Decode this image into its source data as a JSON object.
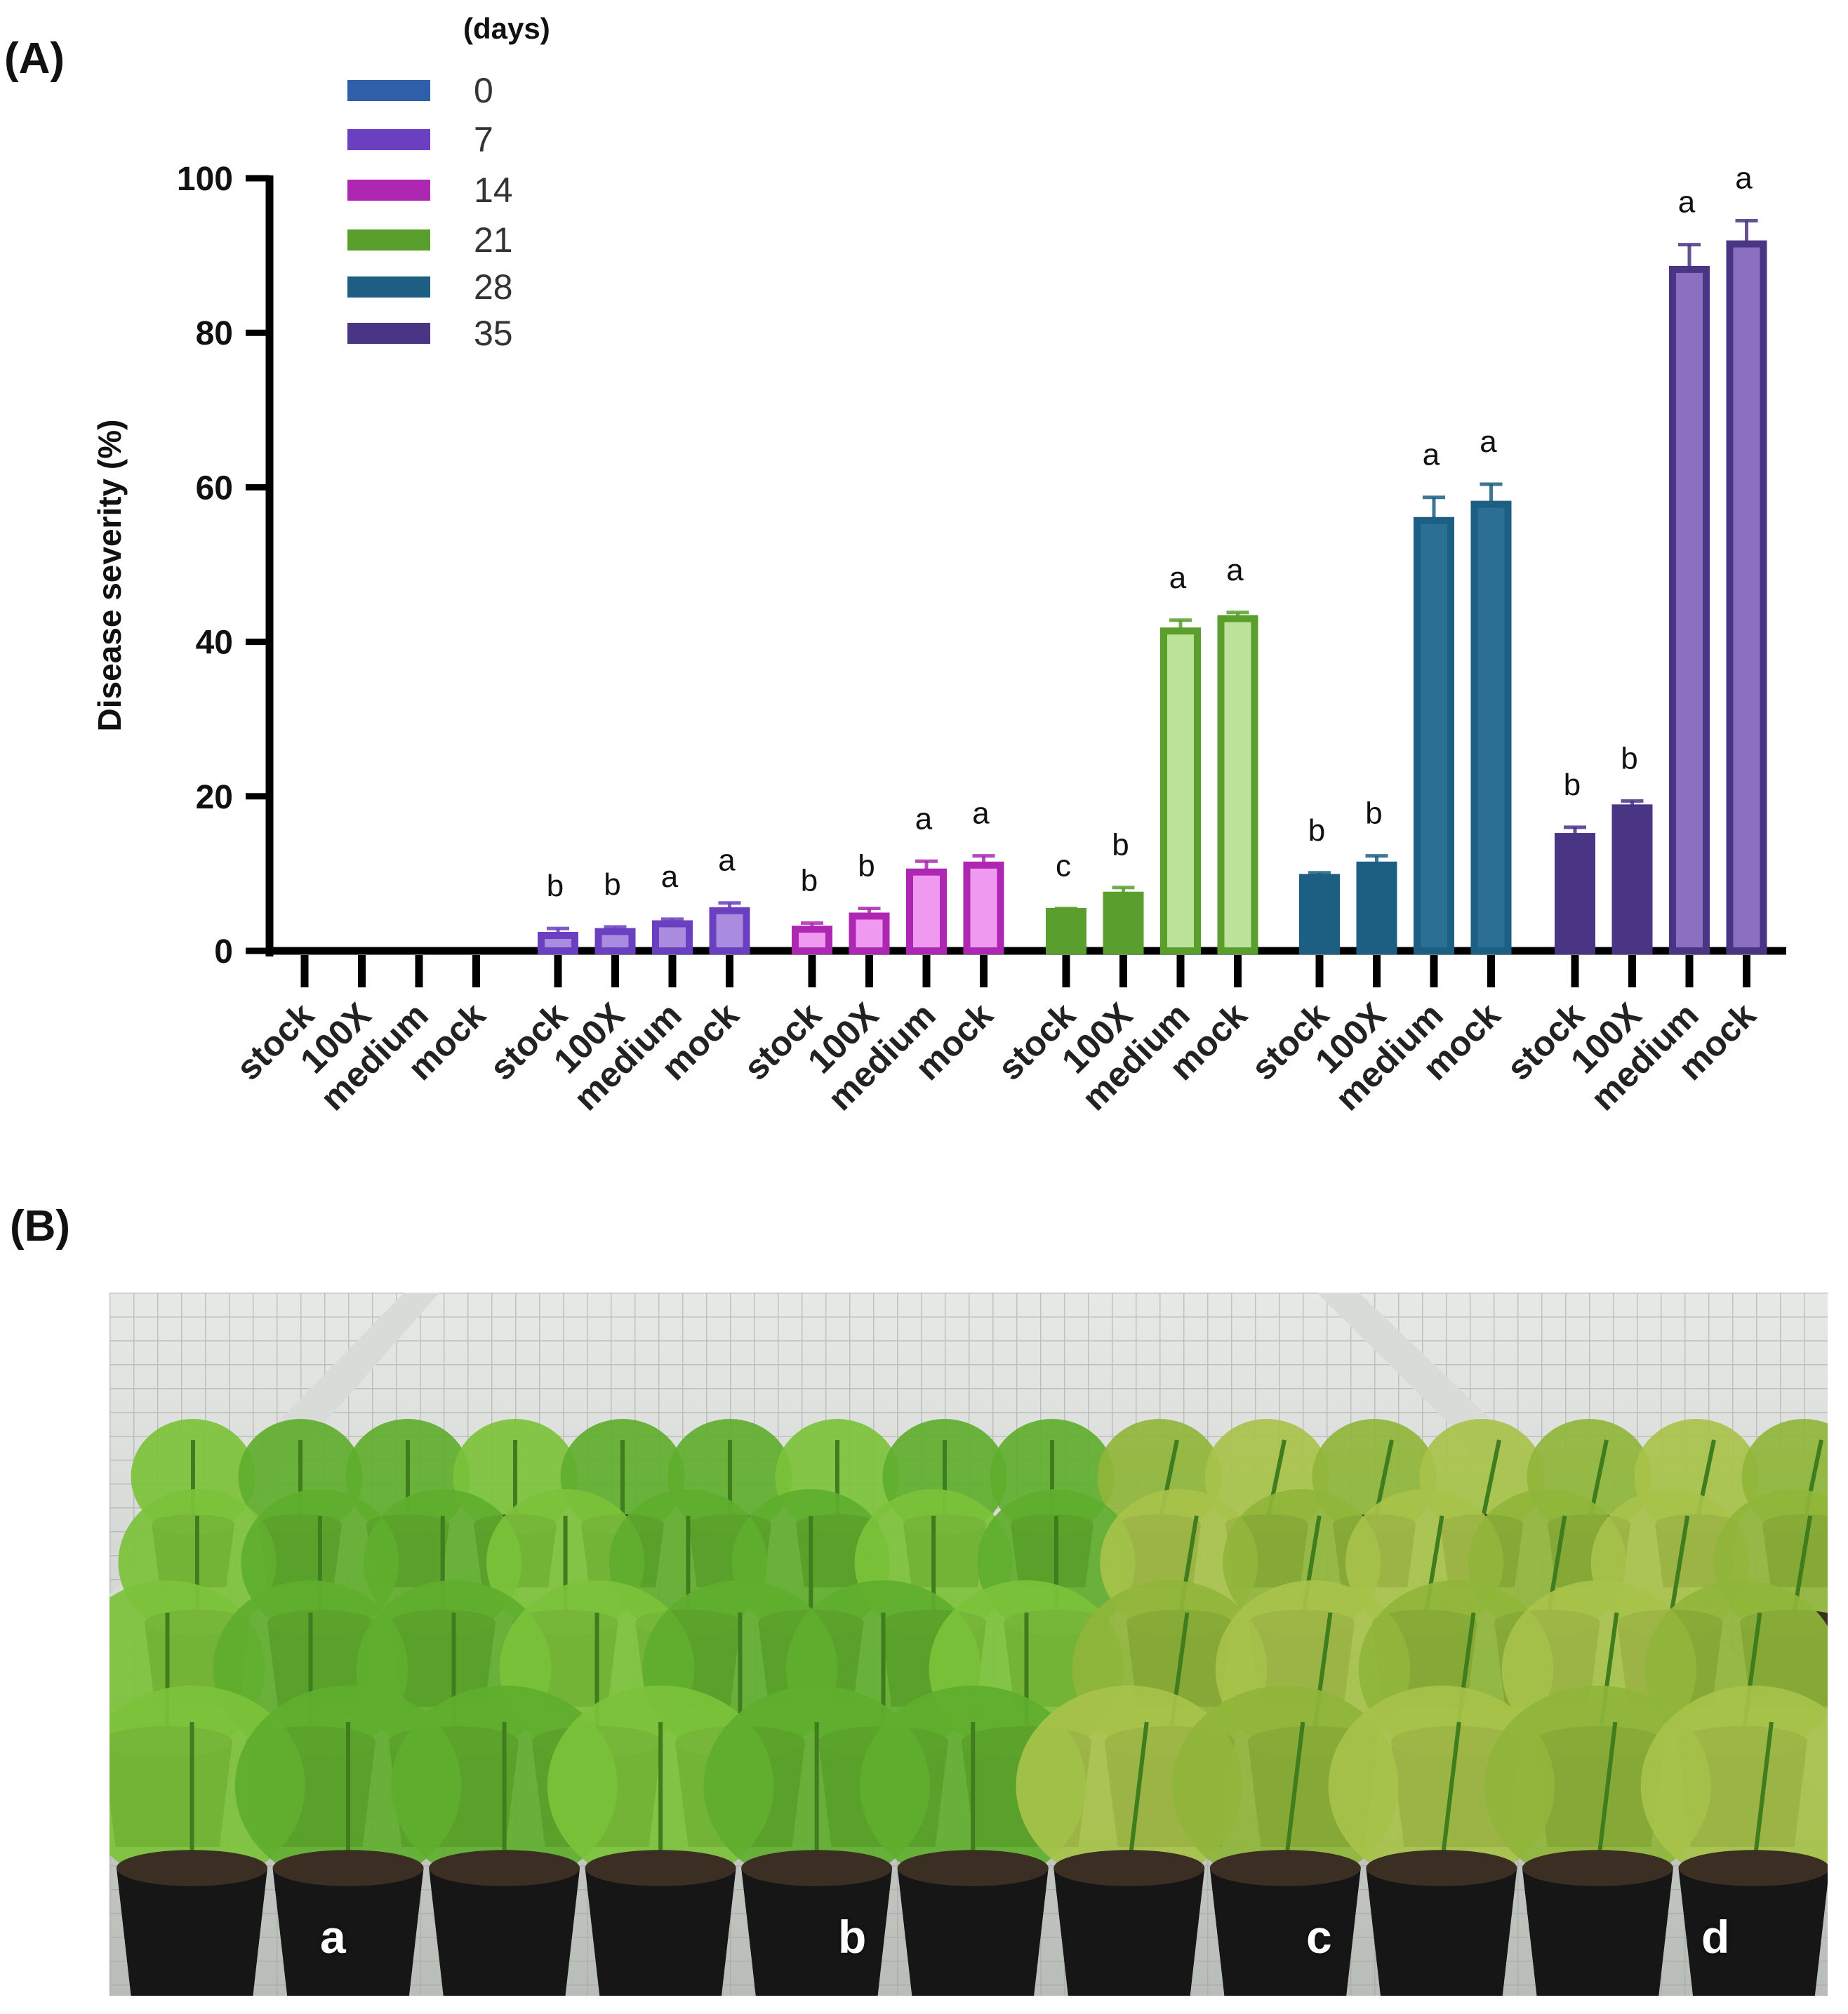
{
  "panel_a_label": "(A)",
  "panel_b_label": "(B)",
  "chart_data": {
    "type": "bar",
    "title": "",
    "xlabel": "",
    "ylabel": "Disease severity (%)",
    "ylim": [
      0,
      100
    ],
    "yticks": [
      0,
      20,
      40,
      60,
      80,
      100
    ],
    "grid": false,
    "legend_title": "(days)",
    "legend_position": "top-left",
    "categories": [
      "stock",
      "100X",
      "medium",
      "mock"
    ],
    "series": [
      {
        "name": "0",
        "color": "#2e5fa8",
        "values": [
          0,
          0,
          0,
          0
        ],
        "errors": [
          0,
          0,
          0,
          0
        ],
        "letters": [
          "",
          "",
          "",
          ""
        ]
      },
      {
        "name": "7",
        "color": "#6a3fc0",
        "light": "#a98be0",
        "values": [
          2,
          2.5,
          3.5,
          5.2
        ],
        "errors": [
          0.9,
          0.6,
          0.6,
          1.0
        ],
        "letters": [
          "b",
          "b",
          "a",
          "a"
        ]
      },
      {
        "name": "14",
        "color": "#ad27b2",
        "light": "#ef9af0",
        "values": [
          2.8,
          4.5,
          10.2,
          11.1
        ],
        "errors": [
          0.8,
          1.0,
          1.4,
          1.2
        ],
        "letters": [
          "b",
          "b",
          "a",
          "a"
        ]
      },
      {
        "name": "21",
        "color": "#5a9e2d",
        "light": "#bde39a",
        "values": [
          5.1,
          7.2,
          41.4,
          43.0
        ],
        "errors": [
          0.4,
          1.0,
          1.4,
          0.8
        ],
        "letters": [
          "c",
          "b",
          "a",
          "a"
        ]
      },
      {
        "name": "28",
        "color": "#1d5f82",
        "light": "#2b6f95",
        "values": [
          9.5,
          11.1,
          55.7,
          57.8
        ],
        "errors": [
          0.6,
          1.2,
          3.0,
          2.6
        ],
        "letters": [
          "b",
          "b",
          "a",
          "a"
        ]
      },
      {
        "name": "35",
        "color": "#4a3484",
        "light": "#8b70c2",
        "values": [
          14.8,
          18.5,
          88.2,
          91.5
        ],
        "errors": [
          1.2,
          0.9,
          3.2,
          3.0
        ],
        "letters": [
          "b",
          "b",
          "a",
          "a"
        ]
      }
    ]
  },
  "photo": {
    "labels": [
      "a",
      "b",
      "c",
      "d"
    ]
  }
}
